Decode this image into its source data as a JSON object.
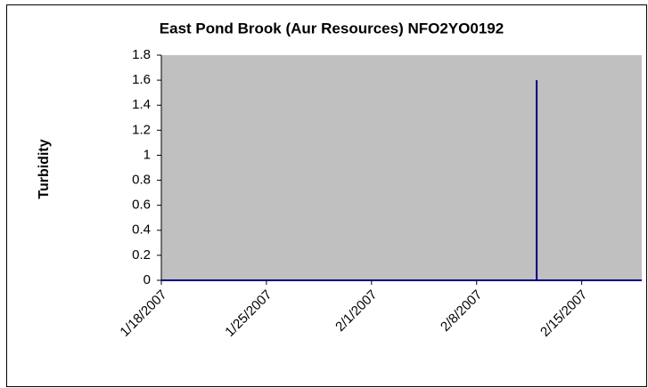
{
  "chart_data": {
    "type": "line",
    "title": "East Pond Brook (Aur Resources) NFO2YO0192",
    "y_label": "Turbidity",
    "x": [
      "1/18/2007",
      "2/12/2007",
      "2/12/2007",
      "2/12/2007",
      "2/19/2007"
    ],
    "series": [
      {
        "name": "Turbidity",
        "color": "#000080",
        "values": [
          0,
          0,
          1.6,
          0,
          0
        ]
      }
    ],
    "xlim": [
      "1/18/2007",
      "2/19/2007"
    ],
    "xticks": [
      "1/18/2007",
      "1/25/2007",
      "2/1/2007",
      "2/8/2007",
      "2/15/2007"
    ],
    "ylim": [
      0,
      1.8
    ],
    "yticks": [
      0,
      0.2,
      0.4,
      0.6,
      0.8,
      1,
      1.2,
      1.4,
      1.6,
      1.8
    ],
    "yticks_labels_note": null,
    "plot_background": "#c0c0c0"
  }
}
